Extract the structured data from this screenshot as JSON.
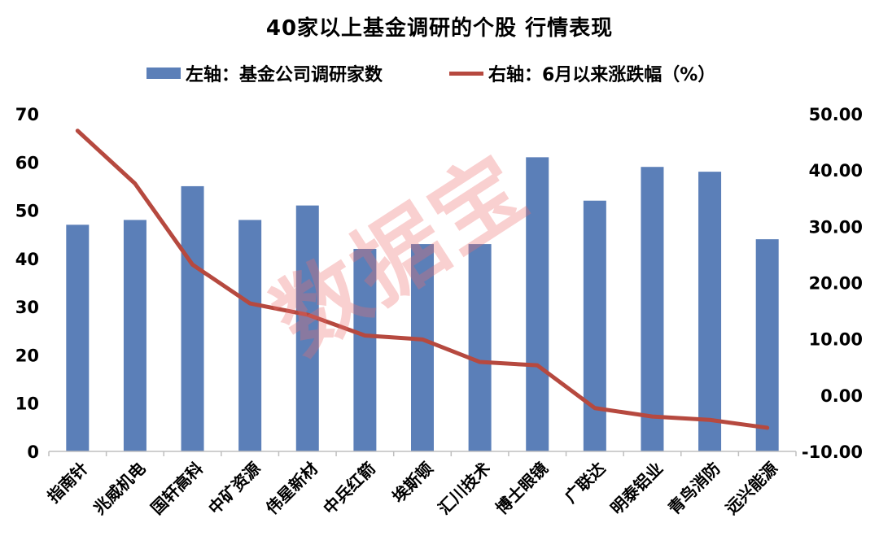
{
  "chart_data": {
    "type": "bar",
    "title": "40家以上基金调研的个股 行情表现",
    "categories": [
      "指南针",
      "兆威机电",
      "国轩高科",
      "中矿资源",
      "伟星新材",
      "中兵红箭",
      "埃斯顿",
      "汇川技术",
      "博士眼镜",
      "广联达",
      "明泰铝业",
      "青鸟消防",
      "远兴能源"
    ],
    "series": [
      {
        "name": "左轴：基金公司调研家数",
        "type": "bar",
        "axis": "left",
        "color": "#5b7fb8",
        "values": [
          47,
          48,
          55,
          48,
          51,
          42,
          43,
          43,
          61,
          52,
          59,
          58,
          44
        ]
      },
      {
        "name": "右轴：6月以来涨跌幅（%）",
        "type": "line",
        "axis": "right",
        "color": "#b6493f",
        "values": [
          47.0,
          37.6,
          23.2,
          16.3,
          14.3,
          10.6,
          9.9,
          5.9,
          5.3,
          -2.3,
          -3.8,
          -4.4,
          -5.8
        ]
      }
    ],
    "y_left": {
      "min": 0,
      "max": 70,
      "step": 10,
      "ticks": [
        "0",
        "10",
        "20",
        "30",
        "40",
        "50",
        "60",
        "70"
      ]
    },
    "y_right": {
      "min": -10,
      "max": 50,
      "step": 10,
      "ticks": [
        "-10.00",
        "0.00",
        "10.00",
        "20.00",
        "30.00",
        "40.00",
        "50.00"
      ]
    },
    "grid": false,
    "legend_position": "top"
  },
  "watermark": "数据宝"
}
